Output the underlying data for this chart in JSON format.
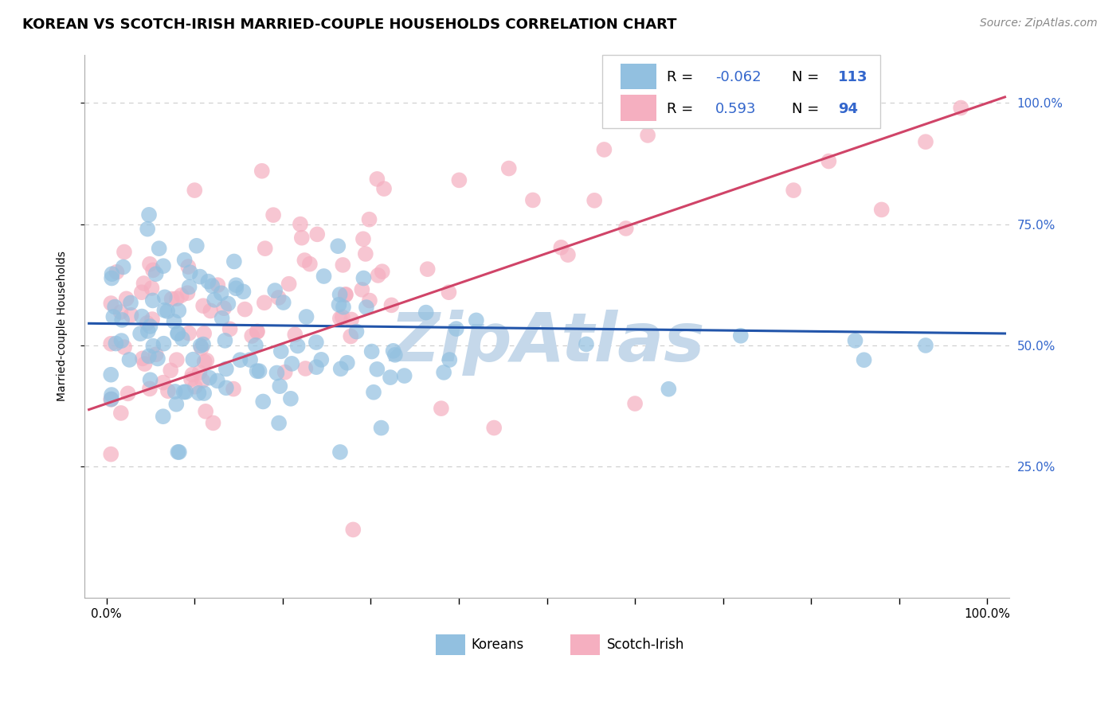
{
  "title": "KOREAN VS SCOTCH-IRISH MARRIED-COUPLE HOUSEHOLDS CORRELATION CHART",
  "source": "Source: ZipAtlas.com",
  "ylabel": "Married-couple Households",
  "korean_R": -0.062,
  "korean_N": 113,
  "scotch_R": 0.593,
  "scotch_N": 94,
  "korean_color": "#92c0e0",
  "scotch_color": "#f5afc0",
  "korean_line_color": "#2255aa",
  "scotch_line_color": "#d04468",
  "watermark": "ZipAtlas",
  "watermark_color": "#c5d8ea",
  "background_color": "#ffffff",
  "title_fontsize": 13,
  "axis_label_fontsize": 10,
  "tick_fontsize": 11,
  "source_fontsize": 10,
  "grid_color": "#cccccc",
  "right_tick_color": "#3366cc",
  "korean_line_intercept": 0.545,
  "korean_line_slope": -0.02,
  "scotch_line_intercept": 0.38,
  "scotch_line_slope": 0.62
}
